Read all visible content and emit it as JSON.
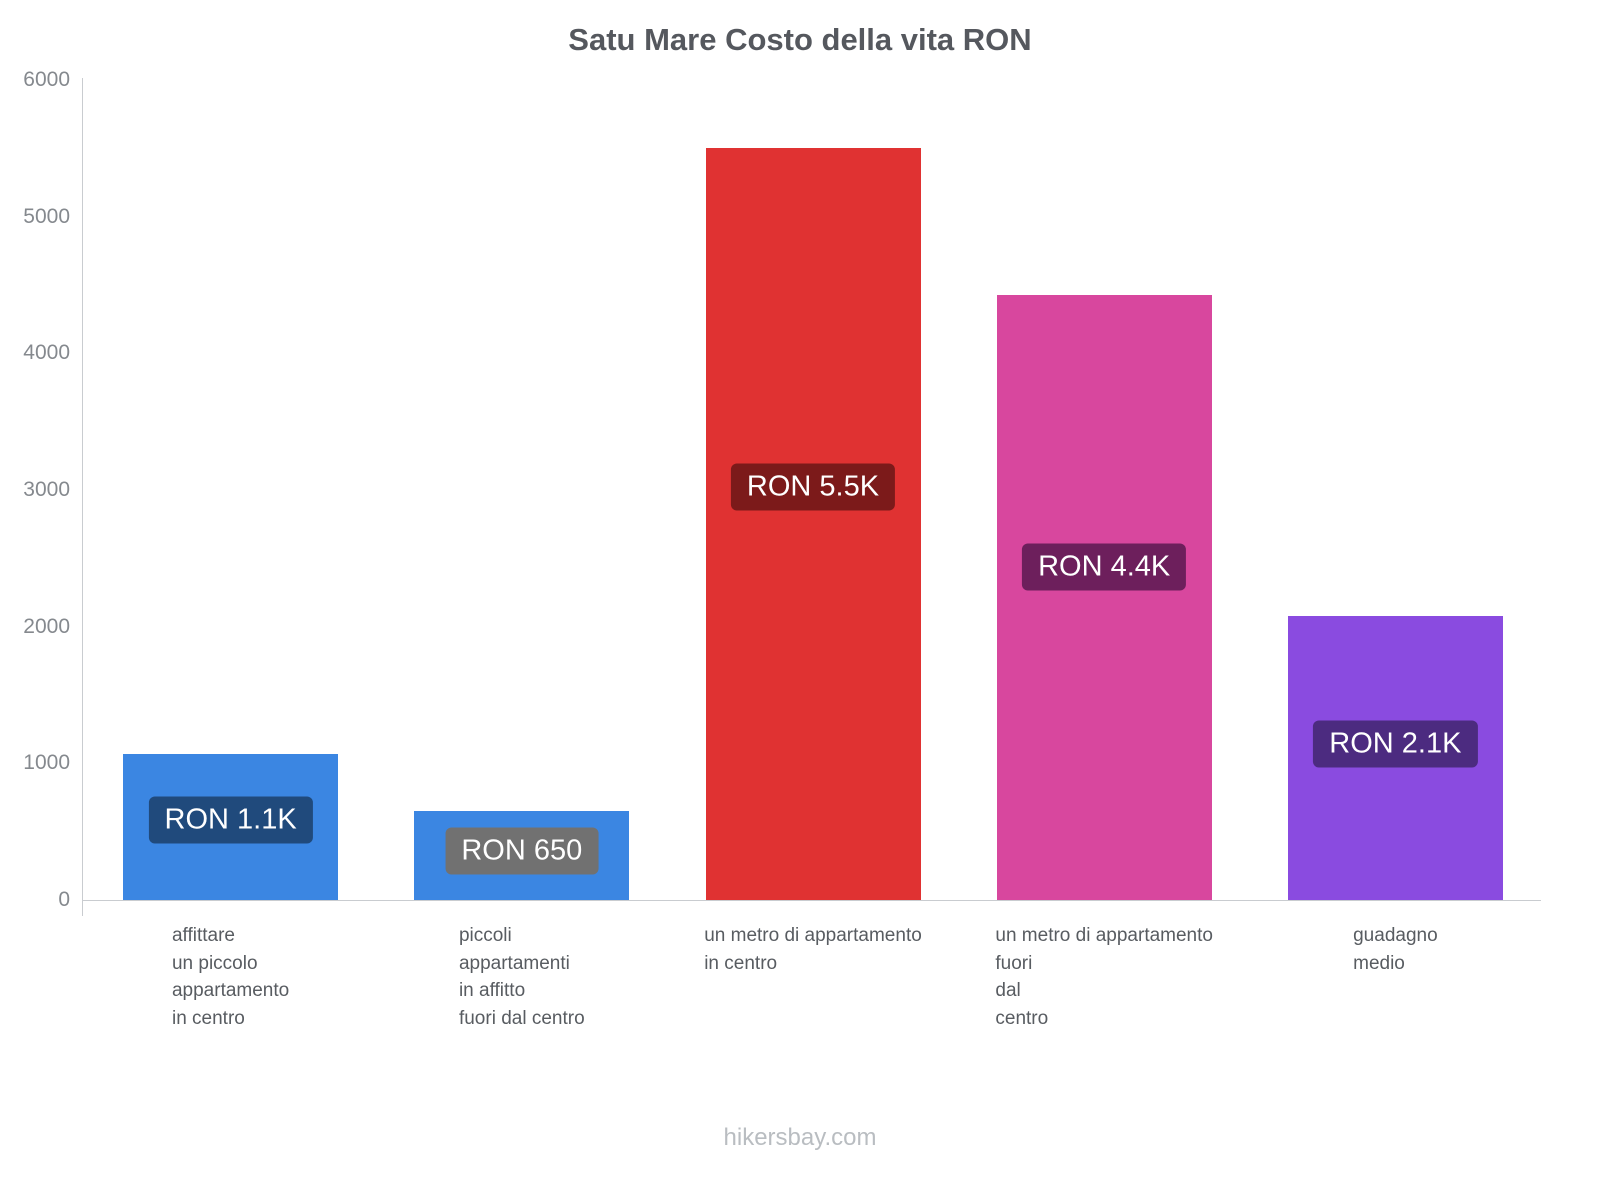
{
  "title": "Satu Mare Costo della vita RON",
  "footer": "hikersbay.com",
  "chart_data": {
    "type": "bar",
    "title": "Satu Mare Costo della vita RON",
    "categories": [
      [
        "affittare",
        "un piccolo",
        "appartamento",
        "in centro"
      ],
      [
        "piccoli",
        "appartamenti",
        "in affitto",
        "fuori dal centro"
      ],
      [
        "un metro di appartamento",
        "in centro"
      ],
      [
        "un metro di appartamento",
        "fuori",
        "dal",
        "centro"
      ],
      [
        "guadagno",
        "medio"
      ]
    ],
    "values": [
      1070,
      650,
      5500,
      4430,
      2080
    ],
    "value_labels": [
      "RON 1.1K",
      "RON 650",
      "RON 5.5K",
      "RON 4.4K",
      "RON 2.1K"
    ],
    "bar_colors": [
      "#3b86e2",
      "#3b86e2",
      "#e03232",
      "#d8479e",
      "#8a4be0"
    ],
    "label_bg_colors": [
      "#204a7c",
      "#717171",
      "#7c1a1a",
      "#6d1f5c",
      "#4c2b80"
    ],
    "xlabel": "",
    "ylabel": "",
    "ylim": [
      0,
      6000
    ],
    "yticks": [
      0,
      1000,
      2000,
      3000,
      4000,
      5000,
      6000
    ],
    "grid": false,
    "legend": false,
    "currency": "RON"
  }
}
